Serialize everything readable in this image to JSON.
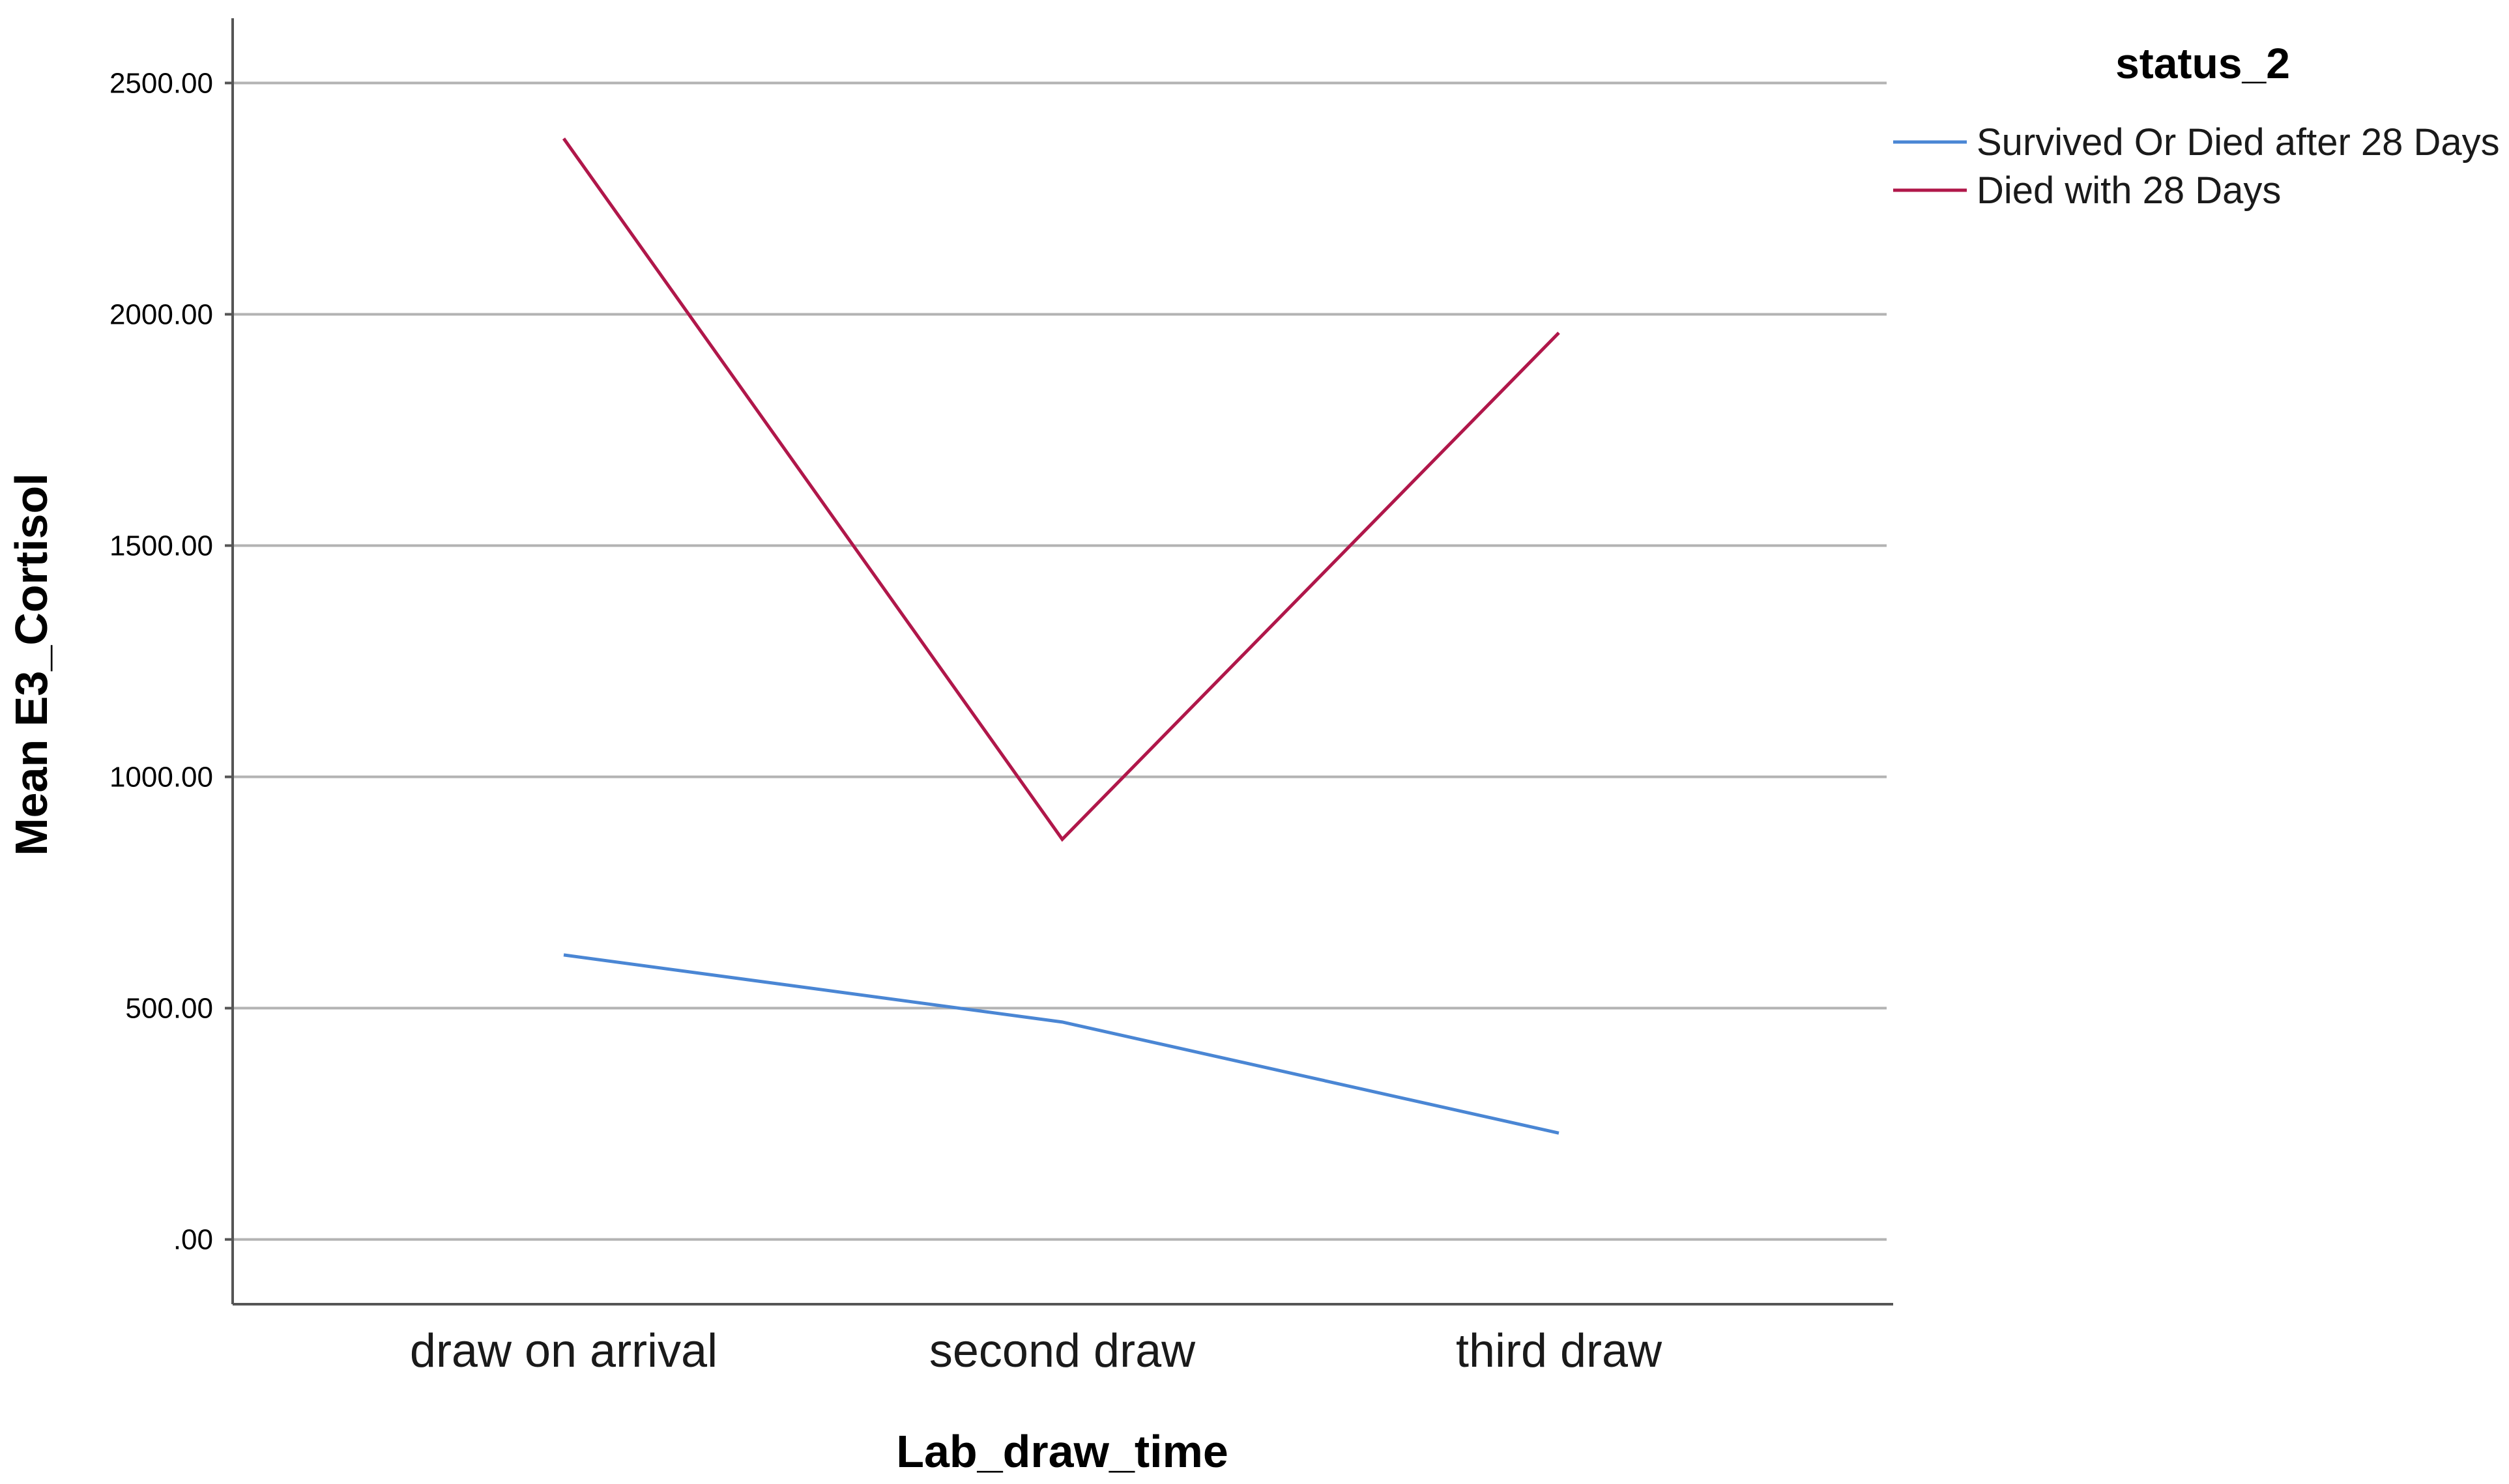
{
  "chart_data": {
    "type": "line",
    "title": "",
    "xlabel": "Lab_draw_time",
    "ylabel": "Mean E3_Cortisol",
    "categories": [
      "draw on arrival",
      "second draw",
      "third draw"
    ],
    "ylim": [
      -140,
      2640
    ],
    "yticks": [
      0,
      500,
      1000,
      1500,
      2000,
      2500
    ],
    "ytick_labels": [
      ".00",
      "500.00",
      "1000.00",
      "1500.00",
      "2000.00",
      "2500.00"
    ],
    "grid": "horizontal",
    "legend_position": "right",
    "legend_title": "status_2",
    "series": [
      {
        "name": "Survived Or Died after 28 Days",
        "color": "#4a86d4",
        "values": [
          615,
          470,
          230
        ]
      },
      {
        "name": "Died with 28 Days",
        "color": "#b0174a",
        "values": [
          2380,
          865,
          1960
        ]
      }
    ]
  }
}
